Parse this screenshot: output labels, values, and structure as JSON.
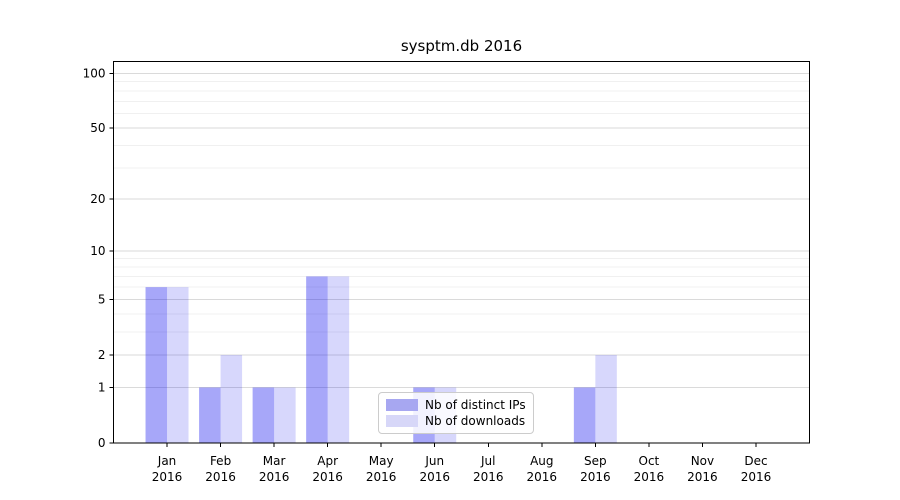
{
  "chart_data": {
    "type": "bar",
    "title": "sysptm.db 2016",
    "categories": [
      "Jan 2016",
      "Feb 2016",
      "Mar 2016",
      "Apr 2016",
      "May 2016",
      "Jun 2016",
      "Jul 2016",
      "Aug 2016",
      "Sep 2016",
      "Oct 2016",
      "Nov 2016",
      "Dec 2016"
    ],
    "series": [
      {
        "name": "Nb of distinct IPs",
        "values": [
          6,
          1,
          1,
          7,
          0,
          1,
          0,
          0,
          1,
          0,
          0,
          0
        ],
        "fill": "rgba(0,0,238,0.345)",
        "legend_color": "#a7a7f1"
      },
      {
        "name": "Nb of downloads",
        "values": [
          6,
          2,
          1,
          7,
          0,
          1,
          0,
          0,
          2,
          0,
          0,
          0
        ],
        "fill": "rgba(0,0,238,0.155)",
        "legend_color": "#d7d7f8"
      }
    ],
    "xlabel": "",
    "ylabel": "",
    "yscale": "log1p",
    "ylim": [
      0,
      116
    ],
    "yticks": [
      0,
      1,
      2,
      5,
      10,
      20,
      50,
      100
    ],
    "yminorticks": [
      3,
      4,
      6,
      7,
      8,
      9,
      30,
      40,
      60,
      70,
      80,
      90
    ],
    "grid": "horizontal",
    "legend_position": "bottom-center",
    "colors": {
      "grid_major": "#dadada",
      "grid_minor": "#f0f0f0",
      "spine": "#000000",
      "text": "#000000"
    }
  }
}
